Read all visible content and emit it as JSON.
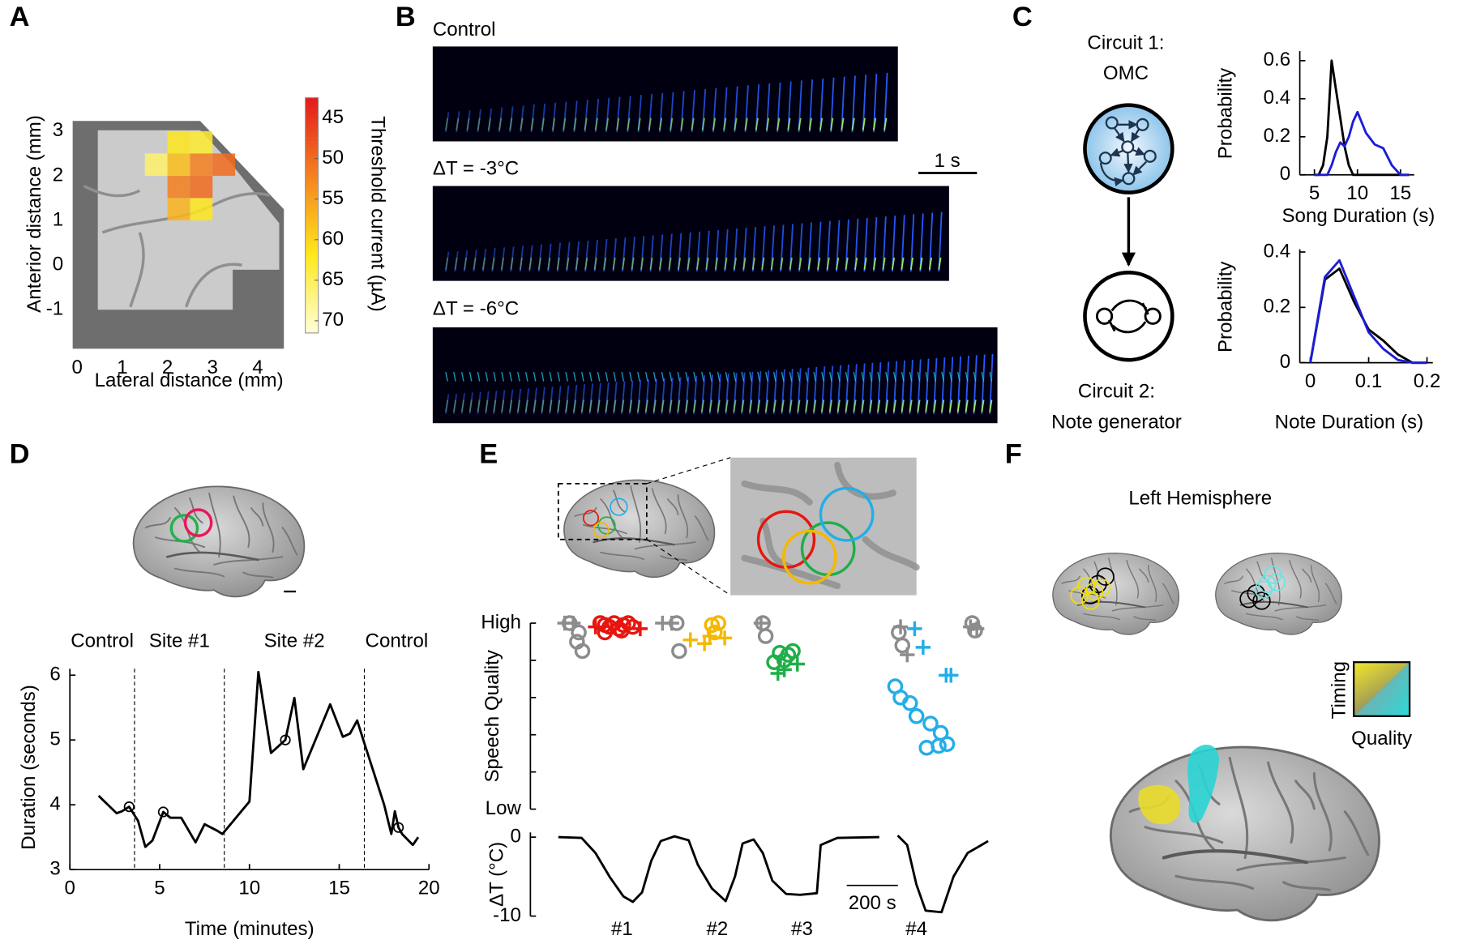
{
  "chart_data": [
    {
      "type": "heatmap",
      "panel": "A",
      "xlabel": "Lateral distance (mm)",
      "ylabel": "Anterior distance (mm)",
      "xbins": [
        1.5,
        2,
        2.5,
        3,
        3.5
      ],
      "ybins": [
        1,
        1.5,
        2,
        2.5,
        3
      ],
      "values": [
        [
          null,
          57,
          62,
          null
        ],
        [
          null,
          52,
          50,
          null
        ],
        [
          66,
          58,
          52,
          50
        ],
        [
          null,
          62,
          63,
          null
        ]
      ],
      "xlim": [
        -0.1,
        4.58
      ],
      "ylim": [
        -1.88,
        3.23
      ],
      "xticks": [
        0,
        1,
        2,
        3,
        4
      ],
      "yticks": [
        -1,
        0,
        1,
        2,
        3
      ],
      "colorbar": {
        "label": "Threshold current (µA)",
        "clim": [
          42.5,
          71.5
        ],
        "ticks": [
          45,
          50,
          55,
          60,
          65,
          70
        ],
        "colors": [
          "#e31a1c",
          "#f58220",
          "#ffe81a",
          "#ffffd9"
        ]
      }
    },
    {
      "type": "spectrogram",
      "panel": "B",
      "labels": [
        "Control",
        "ΔT = -3°C",
        "ΔT = -6°C"
      ],
      "scalebar_label": "1 s"
    },
    {
      "type": "diagram",
      "panel": "C",
      "labels": [
        "Circuit 1:",
        "OMC",
        "Circuit 2:",
        "Note generator"
      ]
    },
    {
      "type": "line",
      "xlabel": "Song Duration (s)",
      "ylabel": "Probability",
      "x": [
        5,
        5.5,
        6,
        6.5,
        7,
        7.5,
        8,
        8.5,
        9,
        9.5,
        10,
        11,
        12,
        13,
        14,
        15,
        16
      ],
      "series": [
        {
          "color": "#000000",
          "values": [
            0,
            0,
            0.05,
            0.2,
            0.6,
            0.45,
            0.3,
            0.15,
            0.05,
            0,
            0,
            0,
            0,
            0,
            0,
            0,
            0
          ]
        },
        {
          "color": "#1c1cd9",
          "values": [
            0,
            0,
            0,
            0,
            0.05,
            0.12,
            0.17,
            0.15,
            0.2,
            0.28,
            0.33,
            0.22,
            0.16,
            0.14,
            0.05,
            0,
            0
          ]
        }
      ],
      "xlim": [
        3.3,
        16.6
      ],
      "ylim": [
        0,
        0.65
      ],
      "xticks": [
        5,
        10,
        15
      ],
      "yticks": [
        0,
        0.2,
        0.4,
        0.6
      ]
    },
    {
      "type": "line",
      "xlabel": "Note Duration (s)",
      "ylabel": "Probability",
      "x": [
        0,
        0.025,
        0.05,
        0.075,
        0.1,
        0.125,
        0.15,
        0.175,
        0.2
      ],
      "series": [
        {
          "color": "#000000",
          "values": [
            0,
            0.3,
            0.34,
            0.22,
            0.12,
            0.08,
            0.03,
            0,
            0
          ]
        },
        {
          "color": "#1c1cd9",
          "values": [
            0,
            0.31,
            0.37,
            0.24,
            0.11,
            0.05,
            0.01,
            0,
            0
          ]
        }
      ],
      "xlim": [
        -0.018,
        0.21
      ],
      "ylim": [
        0,
        0.41
      ],
      "xticks": [
        0,
        0.1,
        0.2
      ],
      "yticks": [
        0,
        0.2,
        0.4
      ]
    },
    {
      "type": "line",
      "panel": "D",
      "xlabel": "Time (minutes)",
      "ylabel": "Duration (seconds)",
      "series": [
        {
          "color": "#000000",
          "x": [
            1.6,
            2.6,
            2.9,
            3.3,
            3.8,
            4.2,
            4.6,
            5.2,
            5.6,
            6.2,
            7.0,
            7.5,
            8.2,
            8.5,
            10.0,
            10.5,
            11.2,
            11.6,
            12.0,
            12.5,
            13.0,
            14.5,
            15.2,
            15.6,
            16.0,
            16.4,
            17.5,
            17.9,
            18.1,
            18.3,
            18.5,
            19.1,
            19.4
          ],
          "values": [
            4.14,
            3.87,
            3.9,
            3.97,
            3.75,
            3.35,
            3.45,
            3.89,
            3.8,
            3.8,
            3.42,
            3.7,
            3.6,
            3.55,
            4.05,
            6.05,
            4.8,
            4.9,
            5.0,
            5.65,
            4.55,
            5.55,
            5.05,
            5.1,
            5.3,
            4.95,
            4.0,
            3.55,
            3.9,
            3.65,
            3.55,
            3.38,
            3.5
          ]
        },
        {
          "color": "#000000",
          "marker": "o",
          "x": [
            3.3,
            5.2,
            12.0,
            18.3
          ],
          "values": [
            3.97,
            3.89,
            5.0,
            3.65
          ]
        }
      ],
      "dividers": [
        3.6,
        8.6,
        16.4
      ],
      "sections": [
        {
          "label": "Control",
          "color": "#000000"
        },
        {
          "label": "Site #1",
          "color": "#22b24c"
        },
        {
          "label": "Site #2",
          "color": "#e8175d"
        },
        {
          "label": "Control",
          "color": "#000000"
        }
      ],
      "xlim": [
        0,
        20
      ],
      "ylim": [
        3,
        6.1
      ],
      "xticks": [
        0,
        5,
        10,
        15,
        20
      ],
      "yticks": [
        3,
        4,
        5,
        6
      ]
    },
    {
      "type": "scatter",
      "panel": "E",
      "ylabel": "Speech Quality",
      "xlim": [
        0,
        1690
      ],
      "ylim": [
        0,
        1
      ],
      "yticks": [
        {
          "value": 0,
          "label": "Low"
        },
        {
          "value": 1,
          "label": "High"
        }
      ],
      "minor_yticks": [
        0.2,
        0.4,
        0.6,
        0.8
      ],
      "series": [
        {
          "color": "#8c8c8c",
          "marker": "o",
          "x": [
            44,
            73,
            94,
            80,
            462,
            472,
            799,
            810,
            1330,
            1344,
            1617,
            1628
          ],
          "values": [
            1,
            0.9,
            0.85,
            0.95,
            1,
            0.85,
            1,
            0.93,
            0.95,
            0.88,
            1,
            0.96
          ]
        },
        {
          "color": "#8c8c8c",
          "marker": "+",
          "x": [
            25,
            58,
            407,
            443,
            792,
            1337,
            1363,
            1610,
            1635
          ],
          "values": [
            1,
            1,
            1,
            1,
            1,
            0.98,
            0.83,
            0.98,
            0.97
          ]
        },
        {
          "color": "#e8150f",
          "marker": "o",
          "x": [
            164,
            182,
            200,
            218,
            236,
            254,
            273,
            291,
            182,
            247
          ],
          "values": [
            1,
            0.99,
            0.98,
            1,
            0.97,
            0.99,
            1,
            0.98,
            0.95,
            0.96
          ]
        },
        {
          "color": "#e8150f",
          "marker": "+",
          "x": [
            145,
            320
          ],
          "values": [
            0.98,
            0.97
          ]
        },
        {
          "color": "#f5b800",
          "marker": "o",
          "x": [
            600,
            625,
            611
          ],
          "values": [
            0.99,
            1,
            0.95
          ]
        },
        {
          "color": "#f5b800",
          "marker": "+",
          "x": [
            516,
            571,
            650,
            592
          ],
          "values": [
            0.91,
            0.89,
            0.92,
            0.93
          ]
        },
        {
          "color": "#1fae48",
          "marker": "o",
          "x": [
            865,
            898,
            916,
            883,
            843
          ],
          "values": [
            0.84,
            0.83,
            0.85,
            0.8,
            0.79
          ]
        },
        {
          "color": "#1fae48",
          "marker": "+",
          "x": [
            934,
            858,
            883
          ],
          "values": [
            0.78,
            0.73,
            0.75
          ]
        },
        {
          "color": "#22aee8",
          "marker": "o",
          "x": [
            1316,
            1374,
            1399,
            1454,
            1494,
            1519,
            1439,
            1486,
            1337
          ],
          "values": [
            0.66,
            0.57,
            0.5,
            0.46,
            0.41,
            0.35,
            0.33,
            0.34,
            0.6
          ]
        },
        {
          "color": "#22aee8",
          "marker": "+",
          "x": [
            1392,
            1425,
            1515,
            1534
          ],
          "values": [
            0.97,
            0.87,
            0.72,
            0.72
          ]
        }
      ]
    },
    {
      "type": "line",
      "ylabel": "ΔT (°C)",
      "series": [
        {
          "color": "#000000",
          "x": [
            0,
            91,
            145,
            200,
            254,
            291,
            327,
            363,
            400,
            454,
            509,
            545,
            600,
            654,
            690,
            720,
            763,
            799,
            836,
            890,
            945,
            1010,
            1025,
            1090,
            1254,
            null,
            1326,
            1363,
            1399,
            1435,
            1497,
            1544,
            1599,
            1653,
            1679
          ],
          "values": [
            0,
            -0.1,
            -2,
            -5,
            -7.5,
            -8.2,
            -7,
            -3,
            -0.5,
            0.1,
            -0.4,
            -3.5,
            -6.5,
            -8.1,
            -5,
            -0.8,
            -0.3,
            -2,
            -5.5,
            -7.2,
            -7.3,
            -7.1,
            -1,
            -0.1,
            0,
            null,
            0.2,
            -1,
            -6,
            -9.3,
            -9.5,
            -5,
            -2,
            -1,
            -0.5
          ]
        }
      ],
      "scalebar": {
        "value": 200,
        "label": "200 s"
      },
      "sites": {
        "labels": [
          "#1",
          "#2",
          "#3",
          "#4"
        ],
        "x": [
          249,
          621,
          952,
          1399
        ],
        "colors": [
          "#e8150f",
          "#f5b800",
          "#1fae48",
          "#22aee8"
        ]
      },
      "xlim": [
        0,
        1690
      ],
      "ylim": [
        -10,
        0.6
      ],
      "yticks": [
        -10,
        0
      ]
    },
    {
      "type": "diagram",
      "panel": "F",
      "title": "Left Hemisphere",
      "legend": {
        "y_label": "Timing",
        "x_label": "Quality"
      }
    }
  ]
}
